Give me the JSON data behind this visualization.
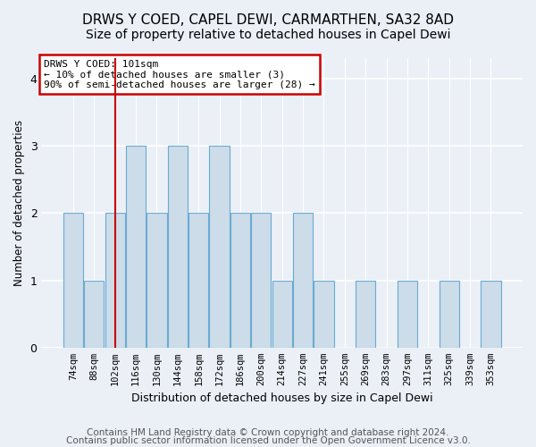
{
  "title": "DRWS Y COED, CAPEL DEWI, CARMARTHEN, SA32 8AD",
  "subtitle": "Size of property relative to detached houses in Capel Dewi",
  "xlabel": "Distribution of detached houses by size in Capel Dewi",
  "ylabel": "Number of detached properties",
  "categories": [
    "74sqm",
    "88sqm",
    "102sqm",
    "116sqm",
    "130sqm",
    "144sqm",
    "158sqm",
    "172sqm",
    "186sqm",
    "200sqm",
    "214sqm",
    "227sqm",
    "241sqm",
    "255sqm",
    "269sqm",
    "283sqm",
    "297sqm",
    "311sqm",
    "325sqm",
    "339sqm",
    "353sqm"
  ],
  "values": [
    2,
    1,
    2,
    3,
    2,
    3,
    2,
    3,
    2,
    2,
    1,
    2,
    1,
    0,
    1,
    0,
    1,
    0,
    1,
    0,
    1
  ],
  "bar_color": "#ccdce8",
  "bar_edge_color": "#6aaad4",
  "red_line_index": 2,
  "annotation_line1": "DRWS Y COED: 101sqm",
  "annotation_line2": "← 10% of detached houses are smaller (3)",
  "annotation_line3": "90% of semi-detached houses are larger (28) →",
  "annotation_box_color": "#ffffff",
  "annotation_box_edge_color": "#cc0000",
  "ylim": [
    0,
    4.3
  ],
  "yticks": [
    0,
    1,
    2,
    3,
    4
  ],
  "footer1": "Contains HM Land Registry data © Crown copyright and database right 2024.",
  "footer2": "Contains public sector information licensed under the Open Government Licence v3.0.",
  "background_color": "#eaf0f6",
  "grid_color": "#ffffff",
  "title_fontsize": 11,
  "subtitle_fontsize": 10,
  "annotation_fontsize": 8,
  "footer_fontsize": 7.5
}
